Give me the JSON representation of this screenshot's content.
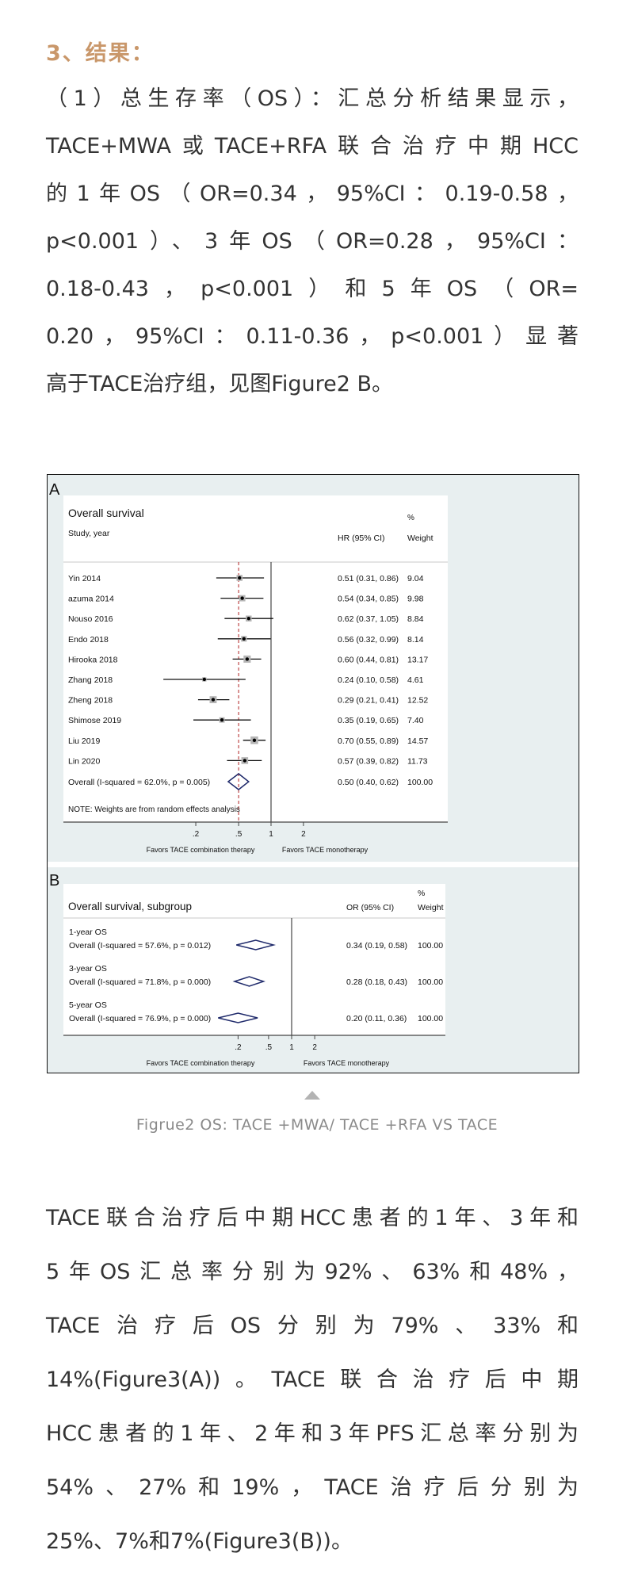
{
  "heading": "3、结果：",
  "paragraph1": [
    "（1）总生存率（OS）：汇总分析结果显示，",
    "TACE+MWA或TACE+RFA联合治疗中期HCC",
    "的1年OS（OR=0.34，95%CI：0.19-0.58，",
    "p<0.001）、3年OS（OR=0.28，95%CI：",
    "0.18-0.43，p<0.001）和5年OS（OR=",
    "0.20，95%CI：0.11-0.36，p<0.001）显著",
    "高于TACE治疗组，见图Figure2 B。"
  ],
  "caption": "Figrue2 OS: TACE +MWA/ TACE +RFA VS TACE",
  "paragraph2": [
    "TACE联合治疗后中期HCC患者的1年、3年和",
    "5年OS汇总率分别为92%、63%和48%，",
    "TACE治疗后OS分别为79%、33%和",
    "14%(Figure3(A))。TACE联合治疗后中期",
    "HCC患者的1年、2年和3年PFS汇总率分别为",
    "54%、27%和19%，TACE治疗后分别为",
    "25%、7%和7%(Figure3(B))。"
  ],
  "colors": {
    "heading": "#c9976a",
    "panel_bg": "#e8eff0",
    "diamond": "#1f2a6b",
    "ref_line": "#b22222",
    "square": "#b5b5b5"
  },
  "chart_data": [
    {
      "type": "forest",
      "panel": "A",
      "title": "Overall survival",
      "row_header": "Study, year",
      "effect_header": "HR (95% CI)",
      "weight_header_1": "%",
      "weight_header_2": "Weight",
      "scale": "log",
      "xticks": [
        0.2,
        0.5,
        1,
        2
      ],
      "xtick_labels": [
        ".2",
        ".5",
        "1",
        "2"
      ],
      "left_label": "Favors TACE combination therapy",
      "right_label": "Favors TACE monotherapy",
      "note": "NOTE: Weights are from random effects analysis",
      "studies": [
        {
          "label": "Yin 2014",
          "est": 0.51,
          "lo": 0.31,
          "hi": 0.86,
          "text": "0.51 (0.31, 0.86)",
          "weight": "9.04"
        },
        {
          "label": "azuma 2014",
          "est": 0.54,
          "lo": 0.34,
          "hi": 0.85,
          "text": "0.54 (0.34, 0.85)",
          "weight": "9.98"
        },
        {
          "label": "Nouso 2016",
          "est": 0.62,
          "lo": 0.37,
          "hi": 1.05,
          "text": "0.62 (0.37, 1.05)",
          "weight": "8.84"
        },
        {
          "label": "Endo 2018",
          "est": 0.56,
          "lo": 0.32,
          "hi": 0.99,
          "text": "0.56 (0.32, 0.99)",
          "weight": "8.14"
        },
        {
          "label": "Hirooka 2018",
          "est": 0.6,
          "lo": 0.44,
          "hi": 0.81,
          "text": "0.60 (0.44, 0.81)",
          "weight": "13.17"
        },
        {
          "label": "Zhang 2018",
          "est": 0.24,
          "lo": 0.1,
          "hi": 0.58,
          "text": "0.24 (0.10, 0.58)",
          "weight": "4.61"
        },
        {
          "label": "Zheng 2018",
          "est": 0.29,
          "lo": 0.21,
          "hi": 0.41,
          "text": "0.29 (0.21, 0.41)",
          "weight": "12.52"
        },
        {
          "label": "Shimose 2019",
          "est": 0.35,
          "lo": 0.19,
          "hi": 0.65,
          "text": "0.35 (0.19, 0.65)",
          "weight": "7.40"
        },
        {
          "label": "Liu 2019",
          "est": 0.7,
          "lo": 0.55,
          "hi": 0.89,
          "text": "0.70 (0.55, 0.89)",
          "weight": "14.57"
        },
        {
          "label": "Lin 2020",
          "est": 0.57,
          "lo": 0.39,
          "hi": 0.82,
          "text": "0.57 (0.39, 0.82)",
          "weight": "11.73"
        }
      ],
      "overall": {
        "label": "Overall  (I-squared = 62.0%, p = 0.005)",
        "est": 0.5,
        "lo": 0.4,
        "hi": 0.62,
        "text": "0.50 (0.40, 0.62)",
        "weight": "100.00"
      }
    },
    {
      "type": "forest",
      "panel": "B",
      "title": "Overall survival, subgroup",
      "effect_header": "OR (95% CI)",
      "weight_header_1": "%",
      "weight_header_2": "Weight",
      "scale": "log",
      "xticks": [
        0.2,
        0.5,
        1,
        2
      ],
      "xtick_labels": [
        ".2",
        ".5",
        "1",
        "2"
      ],
      "left_label": "Favors TACE combination therapy",
      "right_label": "Favors TACE monotherapy",
      "subgroups": [
        {
          "group": "1-year OS",
          "label": "Overall  (I-squared = 57.6%, p = 0.012)",
          "est": 0.34,
          "lo": 0.19,
          "hi": 0.58,
          "text": "0.34 (0.19, 0.58)",
          "weight": "100.00"
        },
        {
          "group": "3-year OS",
          "label": "Overall  (I-squared = 71.8%, p = 0.000)",
          "est": 0.28,
          "lo": 0.18,
          "hi": 0.43,
          "text": "0.28 (0.18, 0.43)",
          "weight": "100.00"
        },
        {
          "group": "5-year OS",
          "label": "Overall  (I-squared = 76.9%, p = 0.000)",
          "est": 0.2,
          "lo": 0.11,
          "hi": 0.36,
          "text": "0.20 (0.11, 0.36)",
          "weight": "100.00"
        }
      ]
    }
  ]
}
